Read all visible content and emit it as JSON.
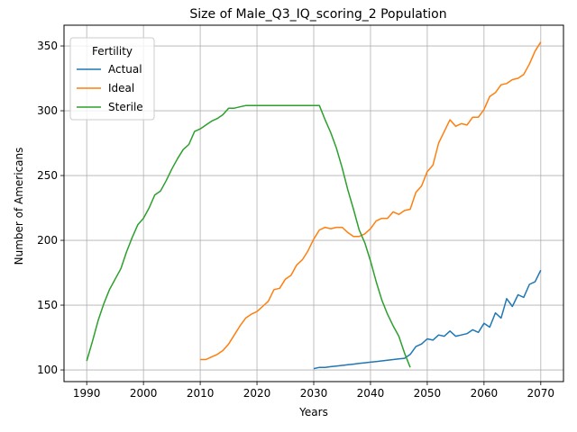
{
  "chart_data": {
    "type": "line",
    "title": "Size of Male_Q3_IQ_scoring_2 Population",
    "xlabel": "Years",
    "ylabel": "Number of Americans",
    "xlim": [
      1986,
      2074
    ],
    "ylim": [
      91,
      366
    ],
    "xticks": [
      1990,
      2000,
      2010,
      2020,
      2030,
      2040,
      2050,
      2060,
      2070
    ],
    "yticks": [
      100,
      150,
      200,
      250,
      300,
      350
    ],
    "grid": true,
    "legend": {
      "title": "Fertility",
      "position": "top-left"
    },
    "series": [
      {
        "name": "Actual",
        "color": "#1f77b4",
        "x": [
          2030,
          2031,
          2032,
          2033,
          2034,
          2035,
          2036,
          2037,
          2038,
          2039,
          2040,
          2041,
          2042,
          2043,
          2044,
          2045,
          2046,
          2047,
          2048,
          2049,
          2050,
          2051,
          2052,
          2053,
          2054,
          2055,
          2056,
          2057,
          2058,
          2059,
          2060,
          2061,
          2062,
          2063,
          2064,
          2065,
          2066,
          2067,
          2068,
          2069,
          2070
        ],
        "values": [
          101,
          102,
          102,
          102.5,
          103,
          103.5,
          104,
          104.5,
          105,
          105.5,
          106,
          106.5,
          107,
          107.5,
          108,
          108.5,
          109,
          112,
          118,
          120,
          124,
          123,
          127,
          126,
          130,
          126,
          127,
          128,
          131,
          129,
          136,
          133,
          144,
          140,
          155,
          149,
          158,
          156,
          166,
          168,
          177
        ]
      },
      {
        "name": "Ideal",
        "color": "#ff7f0e",
        "x": [
          2010,
          2011,
          2012,
          2013,
          2014,
          2015,
          2016,
          2017,
          2018,
          2019,
          2020,
          2021,
          2022,
          2023,
          2024,
          2025,
          2026,
          2027,
          2028,
          2029,
          2030,
          2031,
          2032,
          2033,
          2034,
          2035,
          2036,
          2037,
          2038,
          2039,
          2040,
          2041,
          2042,
          2043,
          2044,
          2045,
          2046,
          2047,
          2048,
          2049,
          2050,
          2051,
          2052,
          2053,
          2054,
          2055,
          2056,
          2057,
          2058,
          2059,
          2060,
          2061,
          2062,
          2063,
          2064,
          2065,
          2066,
          2067,
          2068,
          2069,
          2070
        ],
        "values": [
          108,
          108,
          110,
          112,
          115,
          120,
          127,
          134,
          140,
          143,
          145,
          149,
          153,
          162,
          163,
          170,
          173,
          181,
          185,
          192,
          201,
          208,
          210,
          209,
          210,
          210,
          206,
          203,
          203,
          205,
          209,
          215,
          217,
          217,
          222,
          220,
          223,
          224,
          237,
          242,
          253,
          258,
          275,
          284,
          293,
          288,
          290,
          289,
          295,
          295,
          301,
          311,
          314,
          320,
          321,
          324,
          325,
          328,
          336,
          346,
          353
        ]
      },
      {
        "name": "Sterile",
        "color": "#2ca02c",
        "x": [
          1990,
          1991,
          1992,
          1993,
          1994,
          1995,
          1996,
          1997,
          1998,
          1999,
          2000,
          2001,
          2002,
          2003,
          2004,
          2005,
          2006,
          2007,
          2008,
          2009,
          2010,
          2011,
          2012,
          2013,
          2014,
          2015,
          2016,
          2017,
          2018,
          2019,
          2020,
          2021,
          2022,
          2023,
          2024,
          2025,
          2026,
          2027,
          2028,
          2029,
          2030,
          2031,
          2032,
          2033,
          2034,
          2035,
          2036,
          2037,
          2038,
          2039,
          2040,
          2041,
          2042,
          2043,
          2044,
          2045,
          2046,
          2047
        ],
        "values": [
          107,
          122,
          138,
          151,
          162,
          170,
          178,
          191,
          202,
          212,
          217,
          225,
          235,
          238,
          246,
          255,
          263,
          270,
          274,
          284,
          286,
          289,
          292,
          294,
          297,
          302,
          302,
          303,
          304,
          304,
          304,
          304,
          304,
          304,
          304,
          304,
          304,
          304,
          304,
          304,
          304,
          304,
          293,
          283,
          271,
          256,
          239,
          224,
          208,
          198,
          184,
          168,
          154,
          143,
          134,
          126,
          113,
          102
        ]
      }
    ]
  }
}
